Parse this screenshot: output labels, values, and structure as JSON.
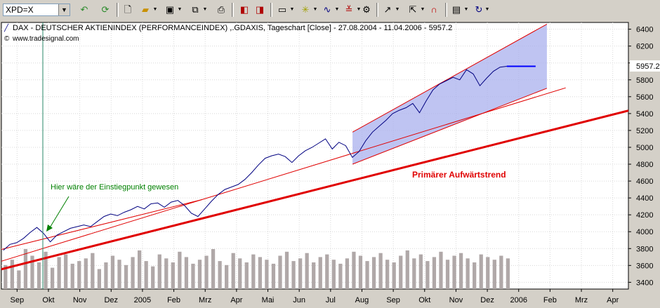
{
  "toolbar": {
    "symbol": "XPD=X",
    "icons": [
      "undo-icon",
      "refresh-icon",
      "new-icon",
      "open-icon",
      "save-icon",
      "copy-icon",
      "print-icon",
      "template-icon",
      "export-icon",
      "chart-type-icon",
      "indicator-icon",
      "drawing-icon",
      "lines-icon",
      "properties-icon",
      "cursor-icon",
      "pointer-icon",
      "magnet-icon",
      "notes-icon",
      "redo-icon"
    ]
  },
  "chart": {
    "title": "DAX  - DEUTSCHER AKTIENINDEX (PERFORMANCEINDEX) ,.GDAXIS, Tageschart [Close] - 27.08.2004 - 11.04.2006 - 5957.2",
    "source": "www.tradesignal.com",
    "annotation_entry": "Hier wäre der Einstiegpunkt gewesen",
    "annotation_trend": "Primärer Aufwärtstrend",
    "last_value": "5957.2",
    "colors": {
      "price": "#000080",
      "trend": "#e00000",
      "channel_fill": "#aab0ee",
      "volume": "#b0a8a8",
      "entry_annotation": "#008000",
      "last_marker": "#0000ff",
      "background": "#ffffff"
    }
  },
  "chart_data": {
    "type": "line",
    "title": "DAX  - DEUTSCHER AKTIENINDEX (PERFORMANCEINDEX) ,.GDAXIS, Tageschart [Close] - 27.08.2004 - 11.04.2006 - 5957.2",
    "x_labels": [
      "Sep",
      "Okt",
      "Nov",
      "Dez",
      "2005",
      "Feb",
      "Mrz",
      "Apr",
      "Mai",
      "Jun",
      "Jul",
      "Aug",
      "Sep",
      "Okt",
      "Nov",
      "Dez",
      "2006",
      "Feb",
      "Mrz",
      "Apr"
    ],
    "y_ticks": [
      3400,
      3600,
      3800,
      4000,
      4200,
      4400,
      4600,
      4800,
      5000,
      5200,
      5400,
      5600,
      5800,
      6000,
      6200,
      6400
    ],
    "ylim": [
      3320,
      6480
    ],
    "series": [
      {
        "name": "DAX",
        "values": [
          3780,
          3850,
          3870,
          3920,
          3990,
          4050,
          3980,
          3880,
          3960,
          4000,
          4040,
          4060,
          4080,
          4060,
          4120,
          4180,
          4210,
          4190,
          4230,
          4260,
          4300,
          4270,
          4330,
          4340,
          4290,
          4350,
          4370,
          4310,
          4220,
          4180,
          4270,
          4360,
          4440,
          4500,
          4530,
          4560,
          4620,
          4700,
          4790,
          4870,
          4900,
          4920,
          4890,
          4820,
          4900,
          4960,
          5000,
          5050,
          5100,
          4980,
          5060,
          5020,
          4880,
          4950,
          5080,
          5180,
          5250,
          5320,
          5400,
          5440,
          5470,
          5520,
          5410,
          5550,
          5680,
          5750,
          5790,
          5830,
          5800,
          5920,
          5870,
          5730,
          5820,
          5900,
          5950,
          5960
        ]
      }
    ],
    "volume": [
      18,
      22,
      14,
      30,
      25,
      20,
      28,
      16,
      24,
      26,
      19,
      21,
      23,
      27,
      15,
      20,
      25,
      22,
      18,
      24,
      29,
      21,
      17,
      26,
      23,
      20,
      28,
      24,
      19,
      22,
      25,
      30,
      21,
      18,
      27,
      23,
      20,
      26,
      24,
      22,
      19,
      25,
      28,
      21,
      23,
      27,
      20,
      24,
      26,
      22,
      19,
      23,
      28,
      25,
      21,
      24,
      27,
      22,
      20,
      25,
      29,
      23,
      26,
      21,
      24,
      28,
      22,
      25,
      27,
      23,
      20,
      26,
      24,
      22,
      25,
      23
    ],
    "trendlines": [
      {
        "name": "Primärer Aufwärtstrend",
        "from": [
          0,
          3555
        ],
        "to": [
          1,
          5435
        ]
      },
      {
        "from": [
          0,
          3650
        ],
        "to": [
          0.9,
          5705
        ]
      },
      {
        "from": [
          0,
          3790
        ],
        "to": [
          0.32,
          4380
        ]
      }
    ],
    "channel": {
      "start": 0.56,
      "end": 0.87,
      "upper_start": 5180,
      "lower_start": 4800,
      "upper_end": 6460,
      "lower_end": 5700
    }
  }
}
